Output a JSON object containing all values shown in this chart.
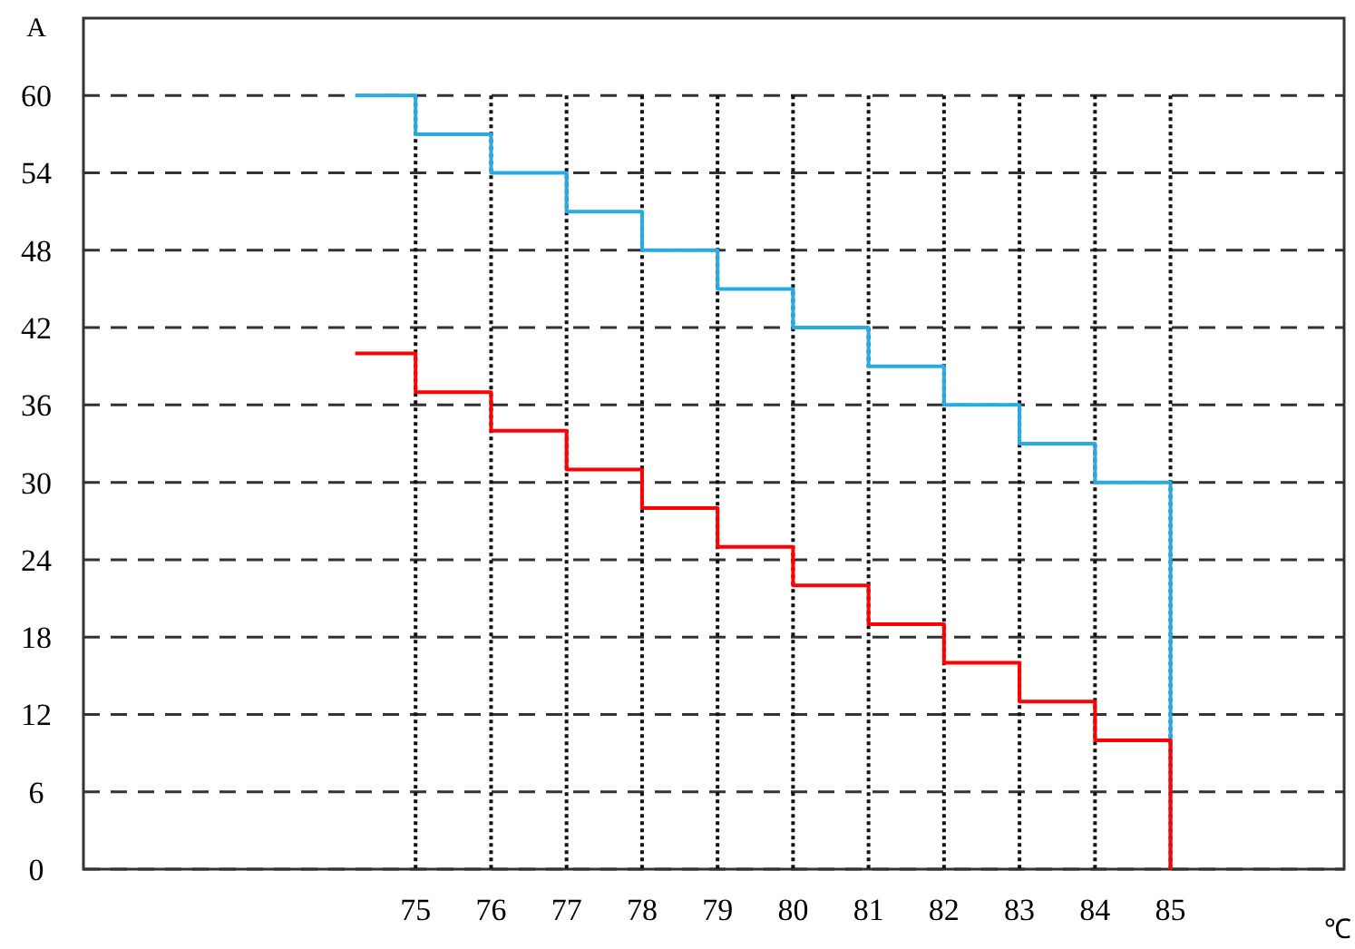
{
  "chart_data": {
    "type": "step",
    "xlabel": "℃",
    "ylabel": "A",
    "x": [
      74.2,
      75,
      76,
      77,
      78,
      79,
      80,
      81,
      82,
      83,
      84,
      85
    ],
    "series": [
      {
        "color": "#29abe2",
        "values": [
          60,
          57,
          54,
          51,
          48,
          45,
          42,
          39,
          36,
          33,
          30,
          0
        ]
      },
      {
        "color": "#ff0000",
        "values": [
          40,
          37,
          34,
          31,
          28,
          25,
          22,
          19,
          16,
          13,
          10,
          0
        ]
      }
    ],
    "xlim": [
      70.6,
      87.3
    ],
    "ylim": [
      0,
      66
    ],
    "xticks": [
      75,
      76,
      77,
      78,
      79,
      80,
      81,
      82,
      83,
      84,
      85
    ],
    "yticks": [
      0,
      6,
      12,
      18,
      24,
      30,
      36,
      42,
      48,
      54,
      60
    ],
    "grid": true
  }
}
